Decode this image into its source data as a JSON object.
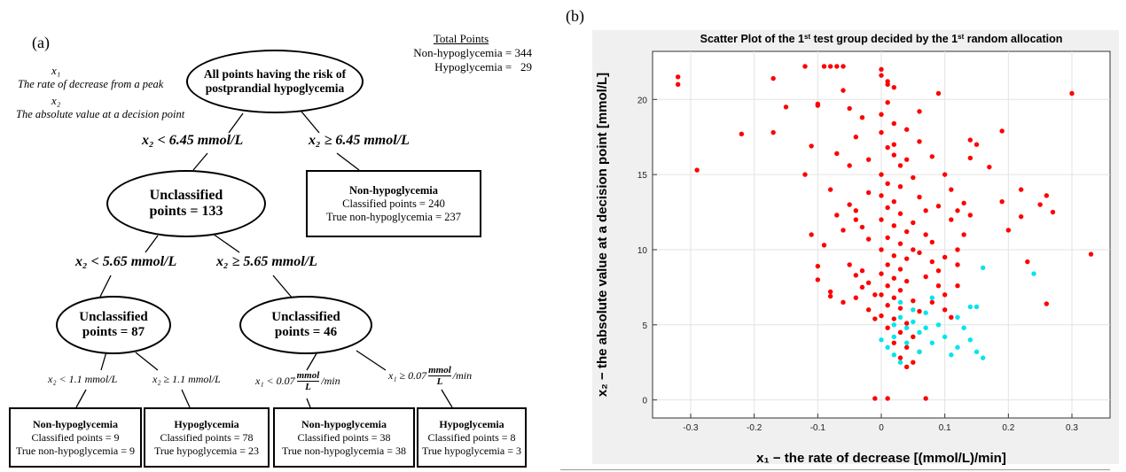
{
  "panel_a": {
    "label": "(a)",
    "legend": {
      "x1_var": "x₁",
      "x1_desc": "The rate of decrease from a peak",
      "x2_var": "x₂",
      "x2_desc": "The absolute value at a decision point"
    },
    "totals": {
      "heading": "Total Points",
      "non_hypo": "Non-hypoglycemia = 344",
      "hypo": "Hypoglycemia =   29"
    },
    "root": {
      "line1": "All points having the risk of",
      "line2": "postprandial hypoglycemia"
    },
    "split1": {
      "left": "x₂ < 6.45 mmol/L",
      "right": "x₂ ≥ 6.45 mmol/L"
    },
    "leaf_top": {
      "title": "Non-hypoglycemia",
      "classified": "Classified points = 240",
      "true": "True non-hypoglycemia = 237"
    },
    "node1": {
      "line1": "Unclassified",
      "line2": "points = 133"
    },
    "split2": {
      "left": "x₂ < 5.65 mmol/L",
      "right": "x₂ ≥ 5.65 mmol/L"
    },
    "node2": {
      "line1": "Unclassified",
      "line2": "points = 87"
    },
    "node3": {
      "line1": "Unclassified",
      "line2": "points = 46"
    },
    "split3": {
      "a": "x₂ < 1.1 mmol/L",
      "b": "x₂ ≥ 1.1 mmol/L",
      "c_pre": "x₁ < 0.07",
      "c_num": "mmol",
      "c_den": "L",
      "c_post": "/min",
      "d_pre": "x₁ ≥ 0.07",
      "d_num": "mmol",
      "d_den": "L",
      "d_post": "/min"
    },
    "leaves": [
      {
        "title": "Non-hypoglycemia",
        "classified": "Classified points = 9",
        "true": "True non-hypoglycemia = 9"
      },
      {
        "title": "Hypoglycemia",
        "classified": "Classified points = 78",
        "true": "True hypoglycemia = 23"
      },
      {
        "title": "Non-hypoglycemia",
        "classified": "Classified points = 38",
        "true": "True non-hypoglycemia = 38"
      },
      {
        "title": "Hypoglycemia",
        "classified": "Classified points = 8",
        "true": "True hypoglycemia = 3"
      }
    ]
  },
  "panel_b": {
    "label": "(b)",
    "chart_data": {
      "type": "scatter",
      "title": "Scatter Plot of the 1st test group decided by the 1st random allocation",
      "title_parts": [
        "Scatter Plot of the 1",
        "st",
        " test group decided by the 1",
        "st",
        " random allocation"
      ],
      "xlabel": "x₁  − the rate of decrease [(mmol/L)/min]",
      "ylabel": "x₂  − the absolute value at a decision point [mmol/L]",
      "xlim": [
        -0.36,
        0.36
      ],
      "ylim": [
        -1.2,
        23.2
      ],
      "xticks": [
        -0.3,
        -0.2,
        -0.1,
        0,
        0.1,
        0.2,
        0.3
      ],
      "xtick_labels": [
        "-0.3",
        "-0.2",
        "-0.1",
        "0",
        "0.1",
        "0.2",
        "0.3"
      ],
      "yticks": [
        0,
        5,
        10,
        15,
        20
      ],
      "ytick_labels": [
        "0",
        "5",
        "10",
        "15",
        "20"
      ],
      "grid": true,
      "series": [
        {
          "color": "#ff0000",
          "points": [
            [
              -0.32,
              21.5
            ],
            [
              -0.32,
              21.0
            ],
            [
              -0.29,
              15.3
            ],
            [
              -0.22,
              17.7
            ],
            [
              -0.17,
              21.4
            ],
            [
              -0.17,
              17.8
            ],
            [
              -0.15,
              19.5
            ],
            [
              -0.12,
              22.2
            ],
            [
              -0.11,
              16.9
            ],
            [
              -0.12,
              15.0
            ],
            [
              -0.11,
              11.0
            ],
            [
              -0.1,
              8.9
            ],
            [
              -0.1,
              8.0
            ],
            [
              -0.09,
              22.2
            ],
            [
              -0.08,
              22.2
            ],
            [
              -0.07,
              22.2
            ],
            [
              -0.06,
              22.2
            ],
            [
              -0.1,
              19.7
            ],
            [
              -0.1,
              19.6
            ],
            [
              -0.08,
              14.0
            ],
            [
              -0.07,
              12.3
            ],
            [
              -0.09,
              10.3
            ],
            [
              -0.08,
              7.2
            ],
            [
              -0.08,
              6.9
            ],
            [
              -0.06,
              20.6
            ],
            [
              -0.05,
              19.4
            ],
            [
              -0.04,
              17.5
            ],
            [
              -0.03,
              18.8
            ],
            [
              -0.02,
              16.0
            ],
            [
              -0.05,
              13.0
            ],
            [
              -0.04,
              12.0
            ],
            [
              -0.03,
              11.5
            ],
            [
              -0.02,
              10.7
            ],
            [
              -0.05,
              9.0
            ],
            [
              -0.04,
              8.3
            ],
            [
              -0.03,
              8.6
            ],
            [
              -0.02,
              7.8
            ],
            [
              -0.06,
              6.5
            ],
            [
              -0.04,
              6.8
            ],
            [
              -0.03,
              7.5
            ],
            [
              -0.01,
              7.0
            ],
            [
              -0.02,
              6.0
            ],
            [
              -0.01,
              5.4
            ],
            [
              -0.0,
              22.0
            ],
            [
              0.0,
              21.6
            ],
            [
              0.01,
              21.2
            ],
            [
              0.01,
              21.0
            ],
            [
              0.02,
              20.8
            ],
            [
              0.01,
              19.8
            ],
            [
              0.0,
              19.0
            ],
            [
              0.02,
              18.4
            ],
            [
              0.0,
              17.8
            ],
            [
              0.01,
              16.8
            ],
            [
              0.02,
              16.3
            ],
            [
              0.03,
              15.6
            ],
            [
              0.0,
              15.0
            ],
            [
              0.01,
              14.4
            ],
            [
              0.03,
              14.2
            ],
            [
              0.0,
              13.6
            ],
            [
              0.02,
              13.2
            ],
            [
              0.01,
              12.8
            ],
            [
              0.03,
              12.4
            ],
            [
              0.0,
              12.0
            ],
            [
              0.02,
              11.6
            ],
            [
              0.04,
              11.2
            ],
            [
              0.01,
              10.8
            ],
            [
              0.03,
              10.4
            ],
            [
              0.0,
              10.0
            ],
            [
              0.02,
              9.6
            ],
            [
              0.04,
              9.4
            ],
            [
              0.01,
              9.0
            ],
            [
              0.03,
              8.7
            ],
            [
              0.0,
              8.4
            ],
            [
              0.02,
              8.1
            ],
            [
              0.04,
              7.9
            ],
            [
              0.01,
              7.6
            ],
            [
              0.03,
              7.3
            ],
            [
              0.0,
              7.0
            ],
            [
              0.02,
              6.8
            ],
            [
              0.05,
              6.6
            ],
            [
              0.01,
              6.3
            ],
            [
              0.03,
              6.1
            ],
            [
              0.06,
              5.9
            ],
            [
              0.0,
              5.6
            ],
            [
              0.02,
              5.4
            ],
            [
              0.04,
              5.1
            ],
            [
              0.01,
              4.8
            ],
            [
              0.03,
              4.5
            ],
            [
              0.05,
              4.2
            ],
            [
              0.02,
              3.8
            ],
            [
              0.04,
              3.5
            ],
            [
              0.06,
              3.2
            ],
            [
              0.03,
              2.8
            ],
            [
              0.05,
              2.5
            ],
            [
              0.04,
              2.2
            ],
            [
              0.05,
              14.8
            ],
            [
              0.06,
              13.5
            ],
            [
              0.07,
              12.6
            ],
            [
              0.05,
              11.8
            ],
            [
              0.07,
              11.0
            ],
            [
              0.08,
              10.5
            ],
            [
              0.06,
              9.8
            ],
            [
              0.08,
              9.2
            ],
            [
              0.09,
              8.6
            ],
            [
              0.07,
              8.2
            ],
            [
              0.09,
              7.6
            ],
            [
              0.1,
              7.0
            ],
            [
              0.08,
              6.5
            ],
            [
              0.1,
              6.0
            ],
            [
              0.11,
              5.5
            ],
            [
              0.12,
              9.0
            ],
            [
              0.12,
              10.0
            ],
            [
              0.13,
              11.0
            ],
            [
              0.14,
              12.3
            ],
            [
              0.13,
              13.1
            ],
            [
              0.14,
              16.1
            ],
            [
              0.15,
              17.0
            ],
            [
              0.14,
              17.3
            ],
            [
              0.12,
              12.6
            ],
            [
              0.17,
              15.5
            ],
            [
              0.19,
              17.9
            ],
            [
              0.19,
              13.2
            ],
            [
              0.2,
              11.3
            ],
            [
              0.22,
              14.0
            ],
            [
              0.22,
              12.2
            ],
            [
              0.23,
              9.2
            ],
            [
              0.25,
              13.0
            ],
            [
              0.26,
              13.6
            ],
            [
              0.27,
              12.5
            ],
            [
              0.26,
              6.4
            ],
            [
              0.3,
              20.4
            ],
            [
              0.33,
              9.7
            ],
            [
              0.06,
              19.2
            ],
            [
              0.09,
              20.4
            ],
            [
              0.04,
              18.0
            ],
            [
              0.06,
              17.2
            ],
            [
              0.08,
              16.2
            ],
            [
              0.1,
              15.0
            ],
            [
              0.11,
              14.0
            ],
            [
              0.09,
              12.9
            ],
            [
              -0.01,
              0.1
            ],
            [
              0.01,
              0.1
            ],
            [
              0.07,
              0.1
            ],
            [
              -0.04,
              12.6
            ],
            [
              -0.06,
              11.3
            ],
            [
              -0.02,
              13.8
            ],
            [
              0.05,
              10.0
            ],
            [
              0.11,
              12.0
            ],
            [
              0.12,
              7.6
            ],
            [
              0.1,
              9.5
            ],
            [
              -0.07,
              16.4
            ],
            [
              -0.05,
              15.6
            ],
            [
              0.02,
              17.0
            ],
            [
              0.04,
              16.0
            ]
          ]
        },
        {
          "color": "#00e5ee",
          "points": [
            [
              0.0,
              4.0
            ],
            [
              0.01,
              3.5
            ],
            [
              0.02,
              5.0
            ],
            [
              0.02,
              4.2
            ],
            [
              0.03,
              6.5
            ],
            [
              0.03,
              5.5
            ],
            [
              0.04,
              4.8
            ],
            [
              0.04,
              3.8
            ],
            [
              0.05,
              6.0
            ],
            [
              0.05,
              5.2
            ],
            [
              0.06,
              4.5
            ],
            [
              0.06,
              3.2
            ],
            [
              0.07,
              5.8
            ],
            [
              0.07,
              4.8
            ],
            [
              0.08,
              6.8
            ],
            [
              0.08,
              3.8
            ],
            [
              0.09,
              5.0
            ],
            [
              0.1,
              4.2
            ],
            [
              0.11,
              3.0
            ],
            [
              0.12,
              3.5
            ],
            [
              0.12,
              5.5
            ],
            [
              0.13,
              4.8
            ],
            [
              0.14,
              6.2
            ],
            [
              0.14,
              4.0
            ],
            [
              0.15,
              6.2
            ],
            [
              0.15,
              3.2
            ],
            [
              0.16,
              2.8
            ],
            [
              0.16,
              8.8
            ],
            [
              0.03,
              2.5
            ],
            [
              0.02,
              3.0
            ],
            [
              0.24,
              8.4
            ]
          ]
        }
      ]
    }
  }
}
